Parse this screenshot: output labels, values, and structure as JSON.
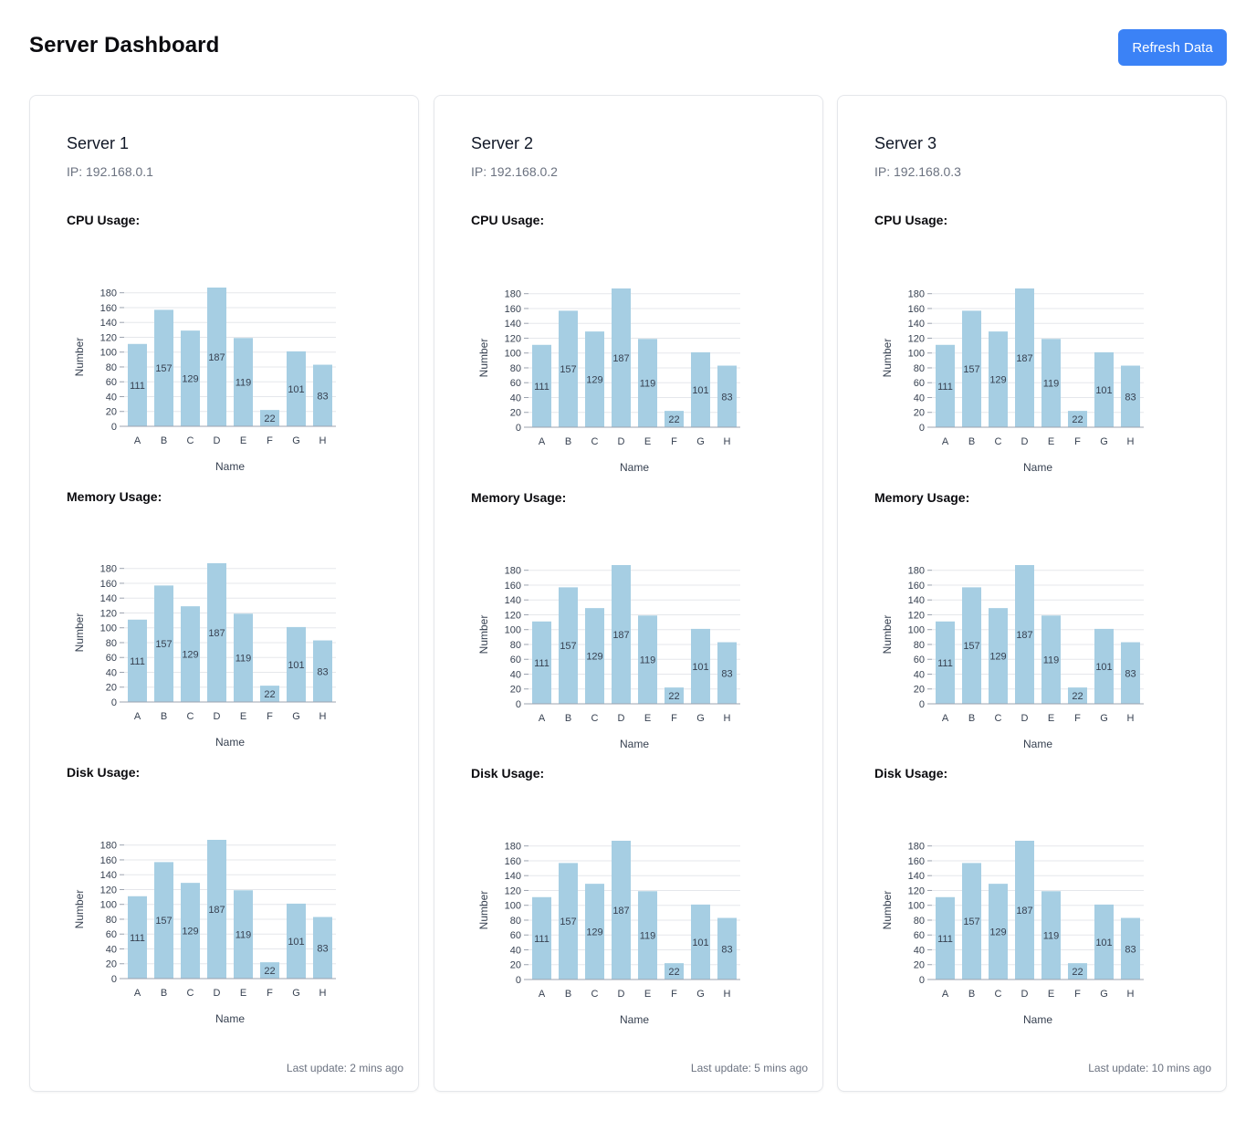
{
  "page": {
    "title": "Server Dashboard",
    "refresh_label": "Refresh Data",
    "accent_color": "#3b82f6",
    "bar_color": "#a6cee3"
  },
  "servers": [
    {
      "name": "Server 1",
      "ip": "IP: 192.168.0.1",
      "metrics": [
        {
          "label": "CPU Usage:"
        },
        {
          "label": "Memory Usage:"
        },
        {
          "label": "Disk Usage:"
        }
      ],
      "last_update": "Last update: 2 mins ago"
    },
    {
      "name": "Server 2",
      "ip": "IP: 192.168.0.2",
      "metrics": [
        {
          "label": "CPU Usage:"
        },
        {
          "label": "Memory Usage:"
        },
        {
          "label": "Disk Usage:"
        }
      ],
      "last_update": "Last update: 5 mins ago"
    },
    {
      "name": "Server 3",
      "ip": "IP: 192.168.0.3",
      "metrics": [
        {
          "label": "CPU Usage:"
        },
        {
          "label": "Memory Usage:"
        },
        {
          "label": "Disk Usage:"
        }
      ],
      "last_update": "Last update: 10 mins ago"
    }
  ],
  "chart_data": {
    "type": "bar",
    "categories": [
      "A",
      "B",
      "C",
      "D",
      "E",
      "F",
      "G",
      "H"
    ],
    "values": [
      111,
      157,
      129,
      187,
      119,
      22,
      101,
      83
    ],
    "xlabel": "Name",
    "ylabel": "Number",
    "yticks": [
      0,
      20,
      40,
      60,
      80,
      100,
      120,
      140,
      160,
      180
    ],
    "ylim": [
      0,
      187
    ],
    "grid": true,
    "data_labels": true,
    "note": "Same chart repeated for CPU, Memory and Disk of each of the three servers"
  }
}
